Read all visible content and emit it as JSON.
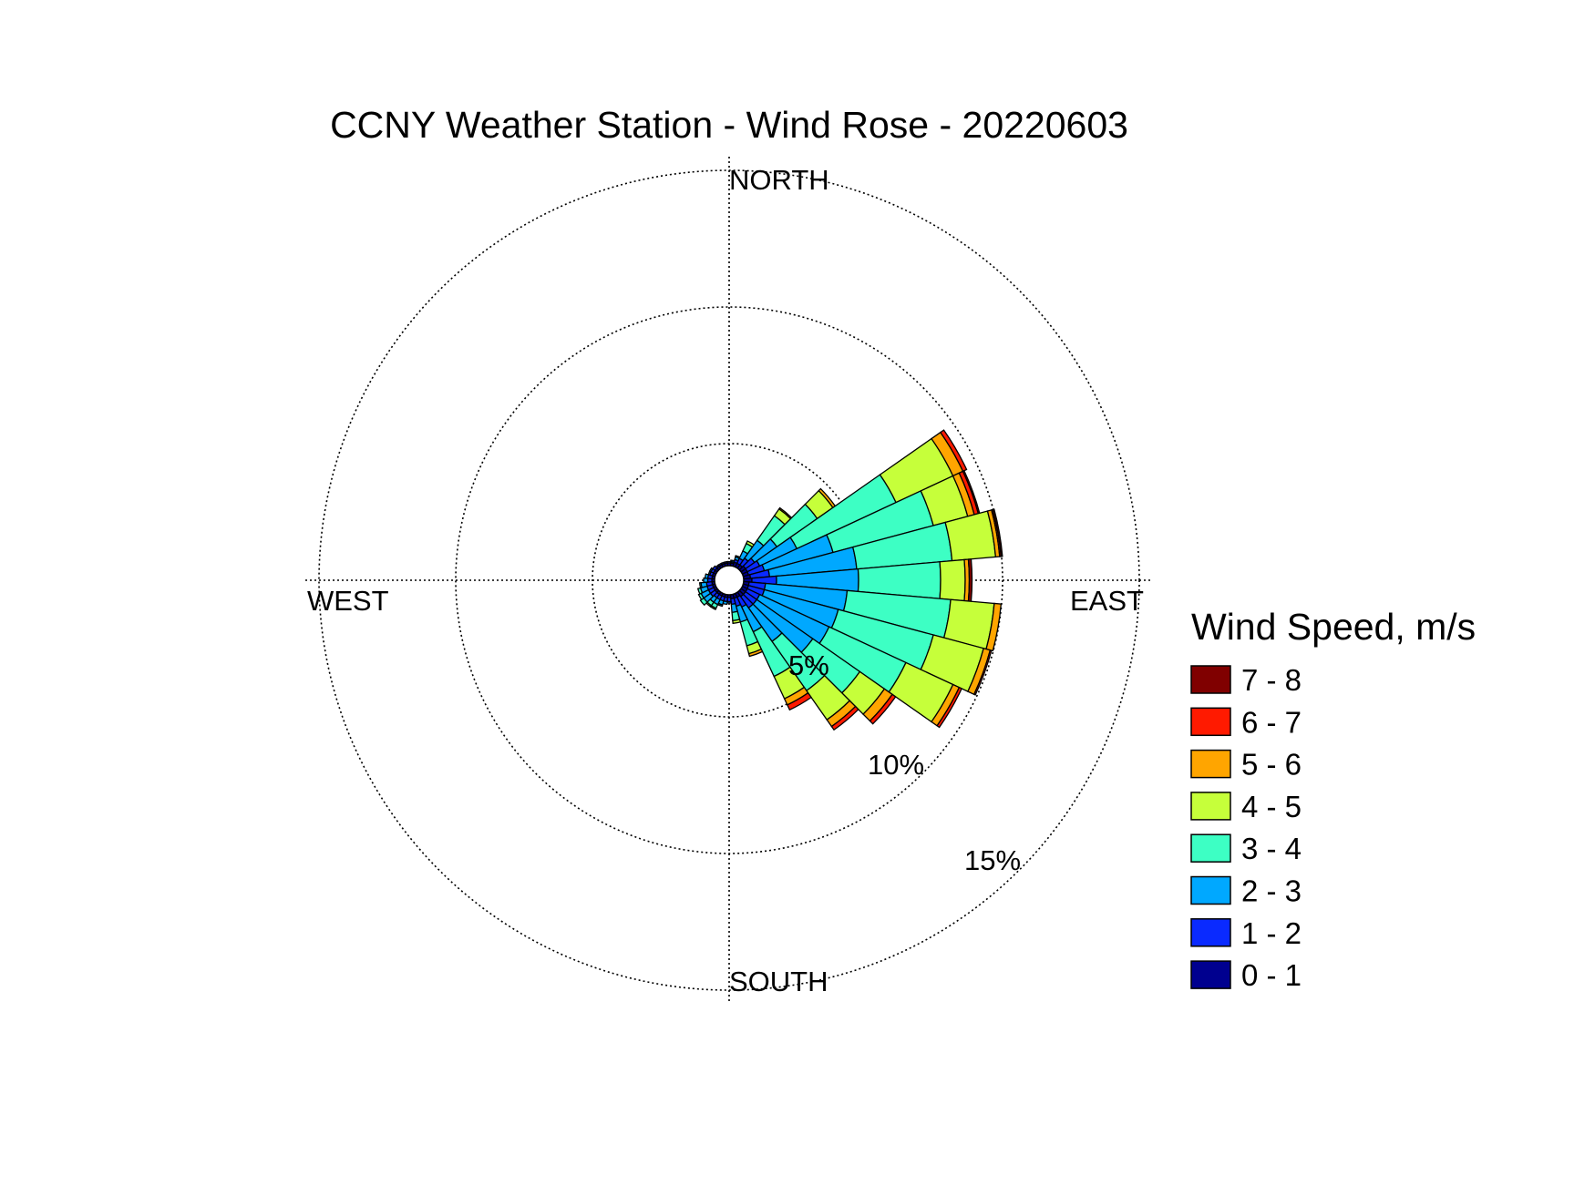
{
  "chart_data": {
    "type": "wind-rose",
    "title": "CCNY Weather Station - Wind Rose - 20220603",
    "directions": [
      "NORTH",
      "EAST",
      "SOUTH",
      "WEST"
    ],
    "ring_values": [
      5,
      10,
      15
    ],
    "ring_labels": [
      "5%",
      "10%",
      "15%"
    ],
    "r_max": 15.5,
    "sector_width_deg": 10,
    "legend": {
      "title": "Wind Speed, m/s",
      "bins": [
        {
          "label": "7 - 8",
          "color": "#800000"
        },
        {
          "label": "6 - 7",
          "color": "#ff1a00"
        },
        {
          "label": "5 - 6",
          "color": "#ffa500"
        },
        {
          "label": "4 - 5",
          "color": "#c6ff3a"
        },
        {
          "label": "3 - 4",
          "color": "#3dffc4"
        },
        {
          "label": "2 - 3",
          "color": "#00a8ff"
        },
        {
          "label": "1 - 2",
          "color": "#0a2aff"
        },
        {
          "label": "0 - 1",
          "color": "#00008f"
        }
      ]
    },
    "bin_order_inner_to_outer": [
      "0 - 1",
      "1 - 2",
      "2 - 3",
      "3 - 4",
      "4 - 5",
      "5 - 6",
      "6 - 7",
      "7 - 8"
    ],
    "sectors": [
      {
        "direction_deg": 20,
        "values": [
          0.15,
          0.1,
          0.1,
          0.05,
          0,
          0,
          0,
          0
        ]
      },
      {
        "direction_deg": 30,
        "values": [
          0.15,
          0.2,
          0.3,
          0.3,
          0.1,
          0,
          0,
          0
        ]
      },
      {
        "direction_deg": 40,
        "values": [
          0.15,
          0.3,
          0.8,
          1.1,
          0.3,
          0.05,
          0,
          0
        ]
      },
      {
        "direction_deg": 50,
        "values": [
          0.2,
          0.4,
          1.0,
          1.8,
          0.7,
          0.1,
          0,
          0
        ]
      },
      {
        "direction_deg": 60,
        "values": [
          0.2,
          0.5,
          1.5,
          4.0,
          2.3,
          0.4,
          0.15,
          0
        ]
      },
      {
        "direction_deg": 70,
        "values": [
          0.2,
          0.6,
          2.6,
          3.8,
          1.3,
          0.25,
          0.15,
          0.05
        ]
      },
      {
        "direction_deg": 80,
        "values": [
          0.25,
          0.7,
          3.2,
          3.5,
          1.6,
          0.15,
          0.05,
          0.05
        ]
      },
      {
        "direction_deg": 90,
        "values": [
          0.3,
          0.9,
          3.0,
          3.0,
          0.9,
          0.15,
          0,
          0.1
        ]
      },
      {
        "direction_deg": 100,
        "values": [
          0.2,
          0.6,
          3.0,
          3.8,
          1.6,
          0.25,
          0,
          0
        ]
      },
      {
        "direction_deg": 110,
        "values": [
          0.2,
          0.6,
          2.8,
          3.6,
          1.9,
          0.25,
          0.05,
          0
        ]
      },
      {
        "direction_deg": 120,
        "values": [
          0.2,
          0.5,
          2.8,
          3.1,
          1.9,
          0.25,
          0.1,
          0
        ]
      },
      {
        "direction_deg": 130,
        "values": [
          0.2,
          0.5,
          2.5,
          2.1,
          1.1,
          0.35,
          0.15,
          0
        ]
      },
      {
        "direction_deg": 140,
        "values": [
          0.2,
          0.5,
          1.5,
          2.2,
          1.3,
          0.3,
          0.15,
          0
        ]
      },
      {
        "direction_deg": 150,
        "values": [
          0.15,
          0.4,
          1.0,
          1.8,
          0.9,
          0.25,
          0.2,
          0
        ]
      },
      {
        "direction_deg": 160,
        "values": [
          0.15,
          0.3,
          0.6,
          0.9,
          0.3,
          0.1,
          0,
          0
        ]
      },
      {
        "direction_deg": 170,
        "values": [
          0.15,
          0.2,
          0.3,
          0.3,
          0.1,
          0,
          0,
          0
        ]
      },
      {
        "direction_deg": 180,
        "values": [
          0.1,
          0.15,
          0.05,
          0,
          0,
          0,
          0,
          0
        ]
      },
      {
        "direction_deg": 190,
        "values": [
          0.1,
          0.15,
          0.1,
          0,
          0,
          0,
          0,
          0
        ]
      },
      {
        "direction_deg": 200,
        "values": [
          0.1,
          0.15,
          0.15,
          0.05,
          0,
          0,
          0,
          0
        ]
      },
      {
        "direction_deg": 210,
        "values": [
          0.1,
          0.15,
          0.2,
          0.15,
          0.05,
          0,
          0,
          0
        ]
      },
      {
        "direction_deg": 220,
        "values": [
          0.1,
          0.15,
          0.2,
          0.15,
          0.05,
          0,
          0,
          0
        ]
      },
      {
        "direction_deg": 230,
        "values": [
          0.1,
          0.2,
          0.3,
          0.15,
          0,
          0,
          0,
          0
        ]
      },
      {
        "direction_deg": 240,
        "values": [
          0.1,
          0.2,
          0.3,
          0.1,
          0,
          0,
          0,
          0
        ]
      },
      {
        "direction_deg": 250,
        "values": [
          0.1,
          0.2,
          0.25,
          0.1,
          0,
          0,
          0,
          0
        ]
      },
      {
        "direction_deg": 260,
        "values": [
          0.1,
          0.2,
          0.2,
          0.05,
          0,
          0,
          0,
          0
        ]
      },
      {
        "direction_deg": 270,
        "values": [
          0.1,
          0.15,
          0.15,
          0,
          0,
          0,
          0,
          0
        ]
      },
      {
        "direction_deg": 280,
        "values": [
          0.1,
          0.15,
          0.1,
          0,
          0,
          0,
          0,
          0
        ]
      },
      {
        "direction_deg": 290,
        "values": [
          0.1,
          0.1,
          0.05,
          0,
          0,
          0,
          0,
          0
        ]
      },
      {
        "direction_deg": 300,
        "values": [
          0.1,
          0.1,
          0.05,
          0,
          0,
          0,
          0,
          0
        ]
      },
      {
        "direction_deg": 310,
        "values": [
          0.1,
          0.1,
          0,
          0,
          0,
          0,
          0,
          0
        ]
      },
      {
        "direction_deg": 320,
        "values": [
          0.1,
          0.05,
          0,
          0,
          0,
          0,
          0,
          0
        ]
      },
      {
        "direction_deg": 330,
        "values": [
          0.1,
          0.05,
          0,
          0,
          0,
          0,
          0,
          0
        ]
      },
      {
        "direction_deg": 340,
        "values": [
          0.1,
          0.05,
          0,
          0,
          0,
          0,
          0,
          0
        ]
      },
      {
        "direction_deg": 350,
        "values": [
          0.1,
          0.05,
          0,
          0,
          0,
          0,
          0,
          0
        ]
      },
      {
        "direction_deg": 0,
        "values": [
          0.1,
          0.05,
          0,
          0,
          0,
          0,
          0,
          0
        ]
      },
      {
        "direction_deg": 10,
        "values": [
          0.1,
          0.05,
          0.05,
          0,
          0,
          0,
          0,
          0
        ]
      }
    ]
  }
}
